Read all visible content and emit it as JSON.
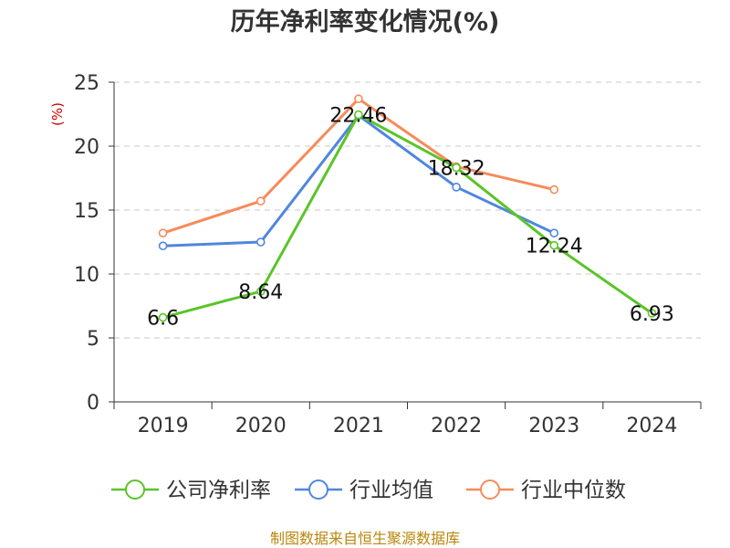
{
  "chart_data": {
    "type": "line",
    "title": "历年净利率变化情况(%)",
    "ylabel": "(%)",
    "xlabel": "",
    "categories": [
      "2019",
      "2020",
      "2021",
      "2022",
      "2023",
      "2024"
    ],
    "ylim": [
      0,
      25
    ],
    "yticks": [
      "0",
      "5",
      "10",
      "15",
      "20",
      "25"
    ],
    "grid": "horizontal-dashed",
    "legend_position": "bottom",
    "series": [
      {
        "name": "公司净利率",
        "color": "#5bc428",
        "values": [
          6.6,
          8.64,
          22.46,
          18.32,
          12.24,
          6.93
        ],
        "labels": [
          "6.6",
          "8.64",
          "22.46",
          "18.32",
          "12.24",
          "6.93"
        ]
      },
      {
        "name": "行业均值",
        "color": "#4f86e0",
        "values": [
          12.2,
          12.5,
          22.4,
          16.8,
          13.2,
          null
        ]
      },
      {
        "name": "行业中位数",
        "color": "#f68b5a",
        "values": [
          13.2,
          15.7,
          23.7,
          18.4,
          16.6,
          null
        ]
      }
    ]
  },
  "source": "制图数据来自恒生聚源数据库"
}
